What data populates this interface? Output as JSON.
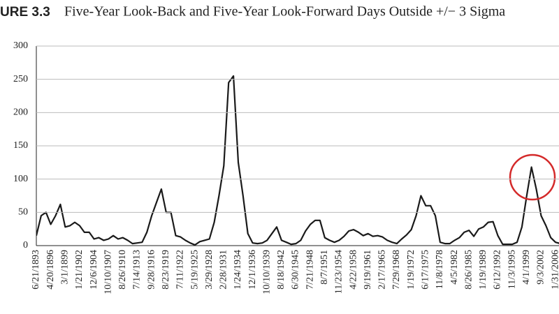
{
  "chart_data": {
    "type": "line",
    "figure_label": "URE 3.3",
    "title": "Five-Year Look-Back and Five-Year Look-Forward Days Outside +/− 3 Sigma",
    "categories": [
      "6/21/1893",
      null,
      null,
      "4/20/1896",
      null,
      null,
      "3/1/1899",
      null,
      null,
      "1/21/1902",
      null,
      null,
      "12/6/1904",
      null,
      null,
      "10/10/1907",
      null,
      null,
      "8/26/1910",
      null,
      null,
      "7/14/1913",
      null,
      null,
      "9/28/1916",
      null,
      null,
      "8/23/1919",
      null,
      null,
      "7/11/1922",
      null,
      null,
      "5/19/1925",
      null,
      null,
      "3/29/1928",
      null,
      null,
      "2/28/1931",
      null,
      null,
      "1/24/1934",
      null,
      null,
      "12/1/1936",
      null,
      null,
      "10/10/1939",
      null,
      null,
      "8/18/1942",
      null,
      null,
      "6/30/1945",
      null,
      null,
      "7/21/1948",
      null,
      null,
      "8/7/1951",
      null,
      null,
      "11/23/1954",
      null,
      null,
      "4/22/1958",
      null,
      null,
      "9/19/1961",
      null,
      null,
      "2/17/1965",
      null,
      null,
      "7/29/1968",
      null,
      null,
      "1/19/1972",
      null,
      null,
      "6/17/1975",
      null,
      null,
      "11/8/1978",
      null,
      null,
      "4/5/1982",
      null,
      null,
      "8/26/1985",
      null,
      null,
      "1/19/1989",
      null,
      null,
      "6/12/1992",
      null,
      null,
      "11/3/1995",
      null,
      null,
      "4/1/1999",
      null,
      null,
      "9/3/2002",
      null,
      null,
      "1/31/2006",
      null
    ],
    "values": [
      15,
      45,
      50,
      32,
      45,
      62,
      28,
      30,
      35,
      30,
      20,
      20,
      10,
      12,
      8,
      10,
      15,
      10,
      12,
      8,
      3,
      4,
      5,
      20,
      45,
      65,
      85,
      50,
      50,
      15,
      13,
      8,
      4,
      1,
      6,
      8,
      10,
      35,
      75,
      120,
      245,
      255,
      125,
      75,
      18,
      4,
      3,
      4,
      8,
      18,
      28,
      8,
      5,
      2,
      3,
      8,
      22,
      32,
      38,
      38,
      12,
      8,
      5,
      8,
      14,
      22,
      24,
      20,
      15,
      18,
      14,
      15,
      13,
      8,
      5,
      3,
      10,
      16,
      24,
      45,
      75,
      60,
      60,
      45,
      5,
      3,
      3,
      8,
      12,
      20,
      23,
      14,
      25,
      28,
      35,
      36,
      15,
      2,
      2,
      2,
      5,
      28,
      75,
      118,
      85,
      45,
      30,
      12,
      5,
      3
    ],
    "color": "#1a1a1a",
    "ylim": [
      0,
      300
    ],
    "yticks": [
      0,
      50,
      100,
      150,
      200,
      250,
      300
    ],
    "grid": true
  }
}
